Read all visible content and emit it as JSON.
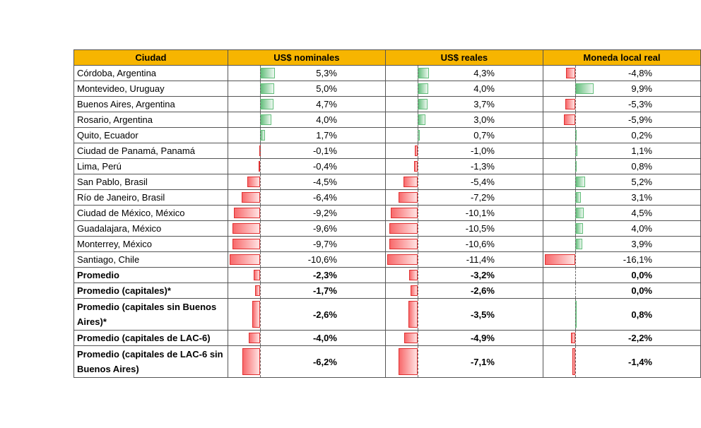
{
  "header": {
    "columns": [
      "Ciudad",
      "US$ nominales",
      "US$ reales",
      "Moneda local real"
    ]
  },
  "rows": [
    {
      "city": "Córdoba, Argentina",
      "cells": [
        {
          "value": 5.3,
          "label": "5,3%"
        },
        {
          "value": 4.3,
          "label": "4,3%"
        },
        {
          "value": -4.8,
          "label": "-4,8%"
        }
      ]
    },
    {
      "city": "Montevideo, Uruguay",
      "cells": [
        {
          "value": 5.0,
          "label": "5,0%"
        },
        {
          "value": 4.0,
          "label": "4,0%"
        },
        {
          "value": 9.9,
          "label": "9,9%"
        }
      ]
    },
    {
      "city": "Buenos Aires, Argentina",
      "cells": [
        {
          "value": 4.7,
          "label": "4,7%"
        },
        {
          "value": 3.7,
          "label": "3,7%"
        },
        {
          "value": -5.3,
          "label": "-5,3%"
        }
      ]
    },
    {
      "city": "Rosario, Argentina",
      "cells": [
        {
          "value": 4.0,
          "label": "4,0%"
        },
        {
          "value": 3.0,
          "label": "3,0%"
        },
        {
          "value": -5.9,
          "label": "-5,9%"
        }
      ]
    },
    {
      "city": "Quito, Ecuador",
      "cells": [
        {
          "value": 1.7,
          "label": "1,7%"
        },
        {
          "value": 0.7,
          "label": "0,7%"
        },
        {
          "value": 0.2,
          "label": "0,2%"
        }
      ]
    },
    {
      "city": "Ciudad de Panamá, Panamá",
      "cells": [
        {
          "value": -0.1,
          "label": "-0,1%"
        },
        {
          "value": -1.0,
          "label": "-1,0%"
        },
        {
          "value": 1.1,
          "label": "1,1%"
        }
      ]
    },
    {
      "city": "Lima, Perú",
      "cells": [
        {
          "value": -0.4,
          "label": "-0,4%"
        },
        {
          "value": -1.3,
          "label": "-1,3%"
        },
        {
          "value": 0.8,
          "label": "0,8%"
        }
      ]
    },
    {
      "city": "San Pablo, Brasil",
      "cells": [
        {
          "value": -4.5,
          "label": "-4,5%"
        },
        {
          "value": -5.4,
          "label": "-5,4%"
        },
        {
          "value": 5.2,
          "label": "5,2%"
        }
      ]
    },
    {
      "city": "Río de Janeiro, Brasil",
      "cells": [
        {
          "value": -6.4,
          "label": "-6,4%"
        },
        {
          "value": -7.2,
          "label": "-7,2%"
        },
        {
          "value": 3.1,
          "label": "3,1%"
        }
      ]
    },
    {
      "city": "Ciudad de México, México",
      "cells": [
        {
          "value": -9.2,
          "label": "-9,2%"
        },
        {
          "value": -10.1,
          "label": "-10,1%"
        },
        {
          "value": 4.5,
          "label": "4,5%"
        }
      ]
    },
    {
      "city": "Guadalajara, México",
      "cells": [
        {
          "value": -9.6,
          "label": "-9,6%"
        },
        {
          "value": -10.5,
          "label": "-10,5%"
        },
        {
          "value": 4.0,
          "label": "4,0%"
        }
      ]
    },
    {
      "city": "Monterrey, México",
      "cells": [
        {
          "value": -9.7,
          "label": "-9,7%"
        },
        {
          "value": -10.6,
          "label": "-10,6%"
        },
        {
          "value": 3.9,
          "label": "3,9%"
        }
      ]
    },
    {
      "city": "Santiago, Chile",
      "cells": [
        {
          "value": -10.6,
          "label": "-10,6%"
        },
        {
          "value": -11.4,
          "label": "-11,4%"
        },
        {
          "value": -16.1,
          "label": "-16,1%"
        }
      ]
    }
  ],
  "summary_rows": [
    {
      "city": "Promedio",
      "cells": [
        {
          "value": -2.3,
          "label": "-2,3%"
        },
        {
          "value": -3.2,
          "label": "-3,2%"
        },
        {
          "value": 0.0,
          "label": "0,0%"
        }
      ]
    },
    {
      "city": "Promedio (capitales)*",
      "cells": [
        {
          "value": -1.7,
          "label": "-1,7%"
        },
        {
          "value": -2.6,
          "label": "-2,6%"
        },
        {
          "value": 0.0,
          "label": "0,0%"
        }
      ]
    },
    {
      "city": "Promedio (capitales sin Buenos Aires)*",
      "cells": [
        {
          "value": -2.6,
          "label": "-2,6%"
        },
        {
          "value": -3.5,
          "label": "-3,5%"
        },
        {
          "value": 0.8,
          "label": "0,8%"
        }
      ]
    },
    {
      "city": "Promedio (capitales de LAC-6)",
      "cells": [
        {
          "value": -4.0,
          "label": "-4,0%"
        },
        {
          "value": -4.9,
          "label": "-4,9%"
        },
        {
          "value": -2.2,
          "label": "-2,2%"
        }
      ]
    },
    {
      "city": "Promedio (capitales de LAC-6 sin Buenos Aires)",
      "cells": [
        {
          "value": -6.2,
          "label": "-6,2%"
        },
        {
          "value": -7.1,
          "label": "-7,1%"
        },
        {
          "value": -1.4,
          "label": "-1,4%"
        }
      ]
    }
  ]
}
